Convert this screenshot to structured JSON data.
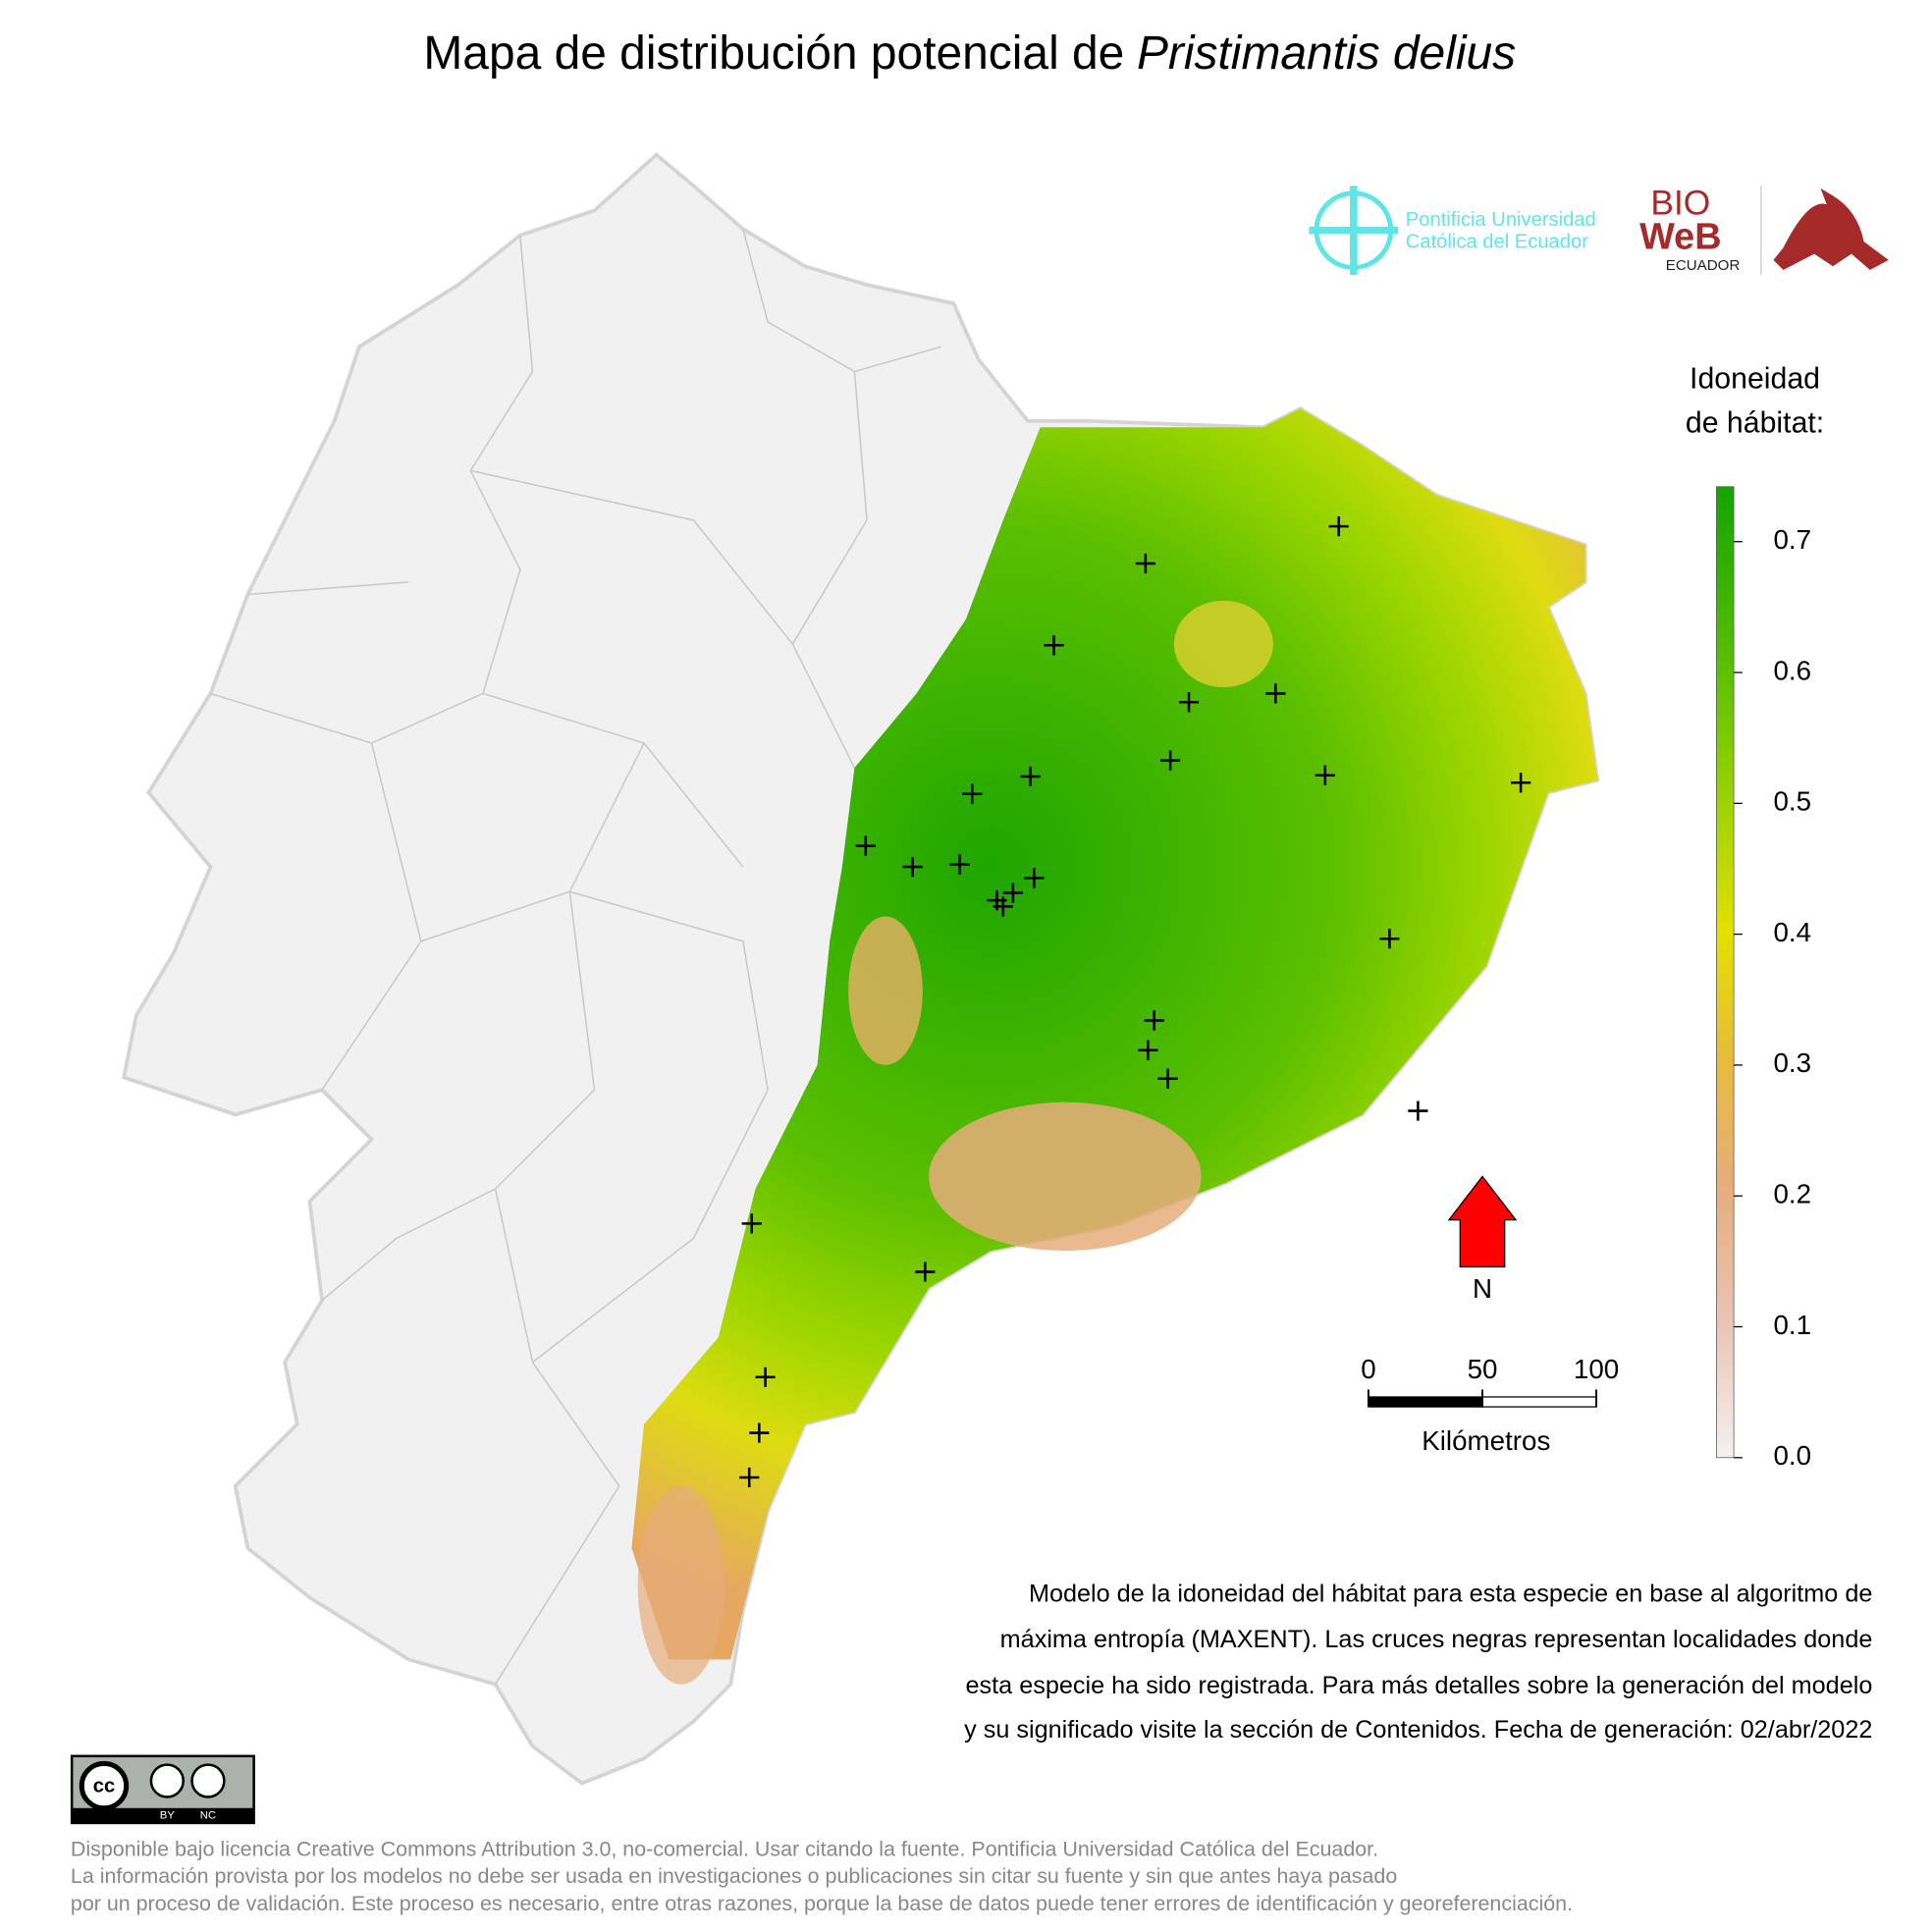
{
  "title": {
    "text": "Mapa de distribución potencial de",
    "species": "Pristimantis delius"
  },
  "logos": {
    "university": [
      "Pontificia Universidad",
      "Católica del Ecuador"
    ],
    "bioweb": [
      "BIO",
      "WeB",
      "ECUADOR"
    ]
  },
  "legend": {
    "title": [
      "Idoneidad",
      "de hábitat:"
    ],
    "lim": [
      0,
      0.742
    ],
    "ticks": [
      {
        "value": 0,
        "label": "0.0"
      },
      0.1,
      0.2,
      0.3,
      0.4,
      0.5,
      0.6,
      0.7
    ]
  },
  "north": "N",
  "scale_bar": {
    "ticks": [
      0,
      50,
      100
    ],
    "label": "Kilómetros"
  },
  "description": [
    "Modelo de la idoneidad del hábitat para esta especie en base al algoritmo de",
    "máxima entropía (MAXENT). Las cruces negras representan localidades donde",
    "esta especie ha sido registrada. Para más detalles sobre la generación del modelo",
    "y su significado visite la sección de Contenidos. Fecha de generación: 02/abr/2022"
  ],
  "license_badge": [
    "cc",
    "BY",
    "NC"
  ],
  "license": [
    "Disponible bajo licencia Creative Commons Attribution 3.0, no-comercial. Usar citando la fuente. Pontificia Universidad Católica del Ecuador.",
    "La información provista por los modelos no debe ser usada en investigaciones o publicaciones sin citar su fuente y sin que antes haya pasado",
    "por un proceso de validación. Este proceso es necesario, entre otras razones, porque la base de datos puede tener errores de identificación y georeferenciación."
  ]
}
